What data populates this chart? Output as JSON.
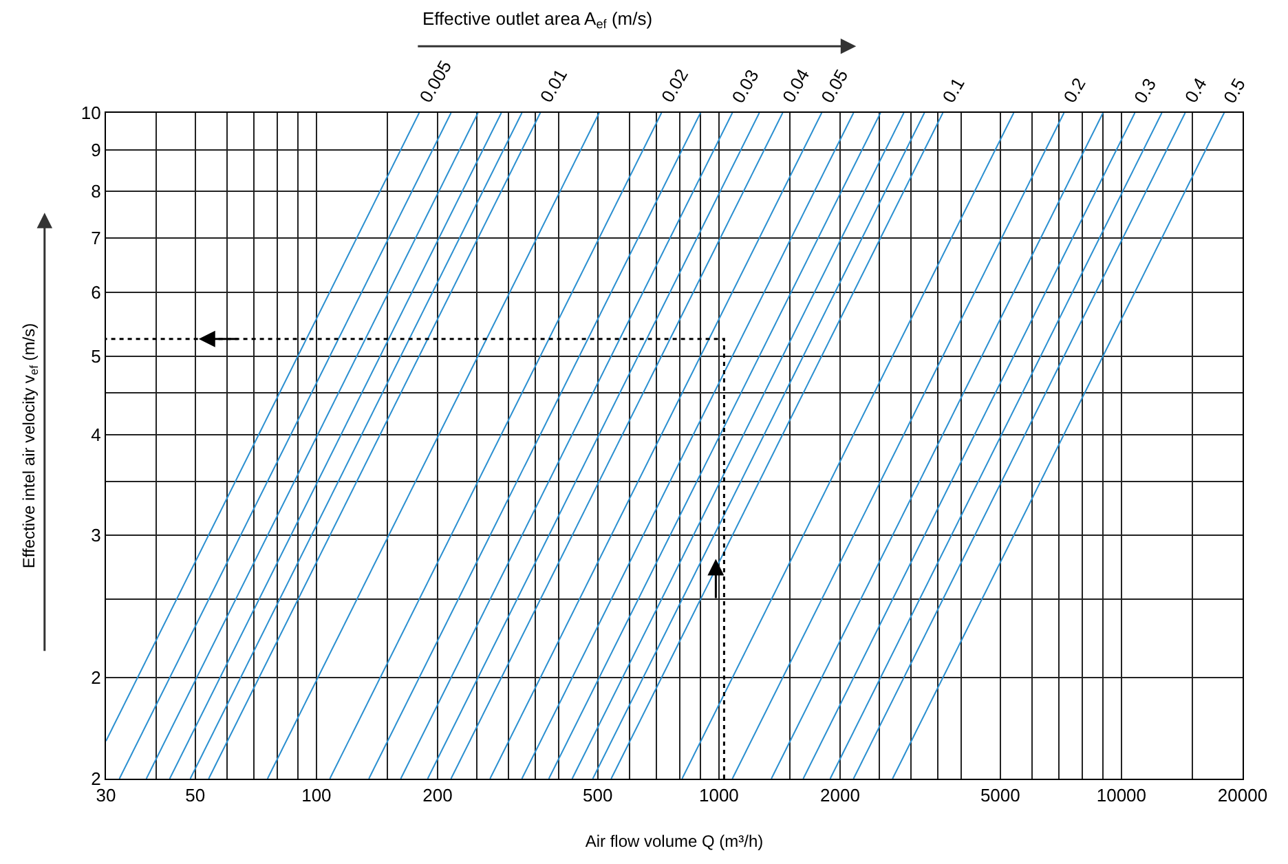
{
  "chart_data": {
    "type": "line",
    "title": "Effective outlet area A$_{ef}$ (m/s)",
    "xlabel": "Air flow volume Q (m³/h)",
    "ylabel": "Effective intel air velocity v$_{ef}$ (m/s)",
    "log": "xy",
    "grid": true,
    "legend": false,
    "marker": "none",
    "line_style": "solid",
    "xlim": [
      30,
      20000
    ],
    "ylim": [
      1.5,
      10
    ],
    "xticks": [
      30,
      {
        "value": 40,
        "label": null
      },
      50,
      {
        "value": 60,
        "label": null
      },
      {
        "value": 70,
        "label": null
      },
      {
        "value": 80,
        "label": null
      },
      {
        "value": 90,
        "label": null
      },
      100,
      {
        "value": 150,
        "label": null
      },
      200,
      {
        "value": 250,
        "label": null
      },
      {
        "value": 300,
        "label": null
      },
      {
        "value": 350,
        "label": null
      },
      {
        "value": 400,
        "label": null
      },
      500,
      {
        "value": 600,
        "label": null
      },
      {
        "value": 700,
        "label": null
      },
      {
        "value": 800,
        "label": null
      },
      {
        "value": 900,
        "label": null
      },
      1000,
      {
        "value": 1500,
        "label": null
      },
      2000,
      {
        "value": 2500,
        "label": null
      },
      {
        "value": 3000,
        "label": null
      },
      {
        "value": 3500,
        "label": null
      },
      {
        "value": 4000,
        "label": null
      },
      5000,
      {
        "value": 6000,
        "label": null
      },
      {
        "value": 7000,
        "label": null
      },
      {
        "value": 8000,
        "label": null
      },
      {
        "value": 9000,
        "label": null
      },
      10000,
      {
        "value": 15000,
        "label": null
      },
      20000
    ],
    "yticks": [
      {
        "value": 1.5,
        "label": "2"
      },
      2,
      {
        "value": 2.5,
        "label": null
      },
      3,
      {
        "value": 3.5,
        "label": null
      },
      4,
      {
        "value": 4.5,
        "label": null
      },
      5,
      6,
      7,
      8,
      9,
      10
    ],
    "series": [
      {
        "name": "0.005",
        "color": "#2a8fd0",
        "x": [
          30,
          180
        ],
        "values": [
          1.67,
          10
        ]
      },
      {
        "color": "#2a8fd0",
        "x": [
          32.4,
          216
        ],
        "values": [
          1.5,
          10
        ]
      },
      {
        "color": "#2a8fd0",
        "x": [
          37.8,
          252
        ],
        "values": [
          1.5,
          10
        ]
      },
      {
        "color": "#2a8fd0",
        "x": [
          43.2,
          288
        ],
        "values": [
          1.5,
          10
        ]
      },
      {
        "color": "#2a8fd0",
        "x": [
          48.6,
          324
        ],
        "values": [
          1.5,
          10
        ]
      },
      {
        "name": "0.01",
        "color": "#2a8fd0",
        "x": [
          54,
          360
        ],
        "values": [
          1.5,
          10
        ]
      },
      {
        "color": "#2a8fd0",
        "x": [
          75.6,
          504
        ],
        "values": [
          1.5,
          10
        ]
      },
      {
        "name": "0.02",
        "color": "#2a8fd0",
        "x": [
          108,
          720
        ],
        "values": [
          1.5,
          10
        ]
      },
      {
        "color": "#2a8fd0",
        "x": [
          135,
          900
        ],
        "values": [
          1.5,
          10
        ]
      },
      {
        "name": "0.03",
        "color": "#2a8fd0",
        "x": [
          162,
          1080
        ],
        "values": [
          1.5,
          10
        ]
      },
      {
        "color": "#2a8fd0",
        "x": [
          189,
          1260
        ],
        "values": [
          1.5,
          10
        ]
      },
      {
        "name": "0.04",
        "color": "#2a8fd0",
        "x": [
          216,
          1440
        ],
        "values": [
          1.5,
          10
        ]
      },
      {
        "name": "0.05",
        "color": "#2a8fd0",
        "x": [
          270,
          1800
        ],
        "values": [
          1.5,
          10
        ]
      },
      {
        "color": "#2a8fd0",
        "x": [
          324,
          2160
        ],
        "values": [
          1.5,
          10
        ]
      },
      {
        "color": "#2a8fd0",
        "x": [
          378,
          2520
        ],
        "values": [
          1.5,
          10
        ]
      },
      {
        "color": "#2a8fd0",
        "x": [
          432,
          2880
        ],
        "values": [
          1.5,
          10
        ]
      },
      {
        "color": "#2a8fd0",
        "x": [
          486,
          3240
        ],
        "values": [
          1.5,
          10
        ]
      },
      {
        "name": "0.1",
        "color": "#2a8fd0",
        "x": [
          540,
          3600
        ],
        "values": [
          1.5,
          10
        ]
      },
      {
        "color": "#2a8fd0",
        "x": [
          810,
          5400
        ],
        "values": [
          1.5,
          10
        ]
      },
      {
        "name": "0.2",
        "color": "#2a8fd0",
        "x": [
          1080,
          7200
        ],
        "values": [
          1.5,
          10
        ]
      },
      {
        "color": "#2a8fd0",
        "x": [
          1350,
          9000
        ],
        "values": [
          1.5,
          10
        ]
      },
      {
        "name": "0.3",
        "color": "#2a8fd0",
        "x": [
          1620,
          10800
        ],
        "values": [
          1.5,
          10
        ]
      },
      {
        "color": "#2a8fd0",
        "x": [
          1890,
          12600
        ],
        "values": [
          1.5,
          10
        ]
      },
      {
        "name": "0.4",
        "color": "#2a8fd0",
        "x": [
          2160,
          14400
        ],
        "values": [
          1.5,
          10
        ]
      },
      {
        "name": "0.5",
        "color": "#2a8fd0",
        "x": [
          2700,
          18000
        ],
        "values": [
          1.5,
          10
        ]
      },
      {
        "color": "#000000",
        "line_style": "dotted",
        "x": [
          1030,
          1030,
          30
        ],
        "values": [
          1.5,
          5.25,
          5.25
        ]
      }
    ]
  }
}
